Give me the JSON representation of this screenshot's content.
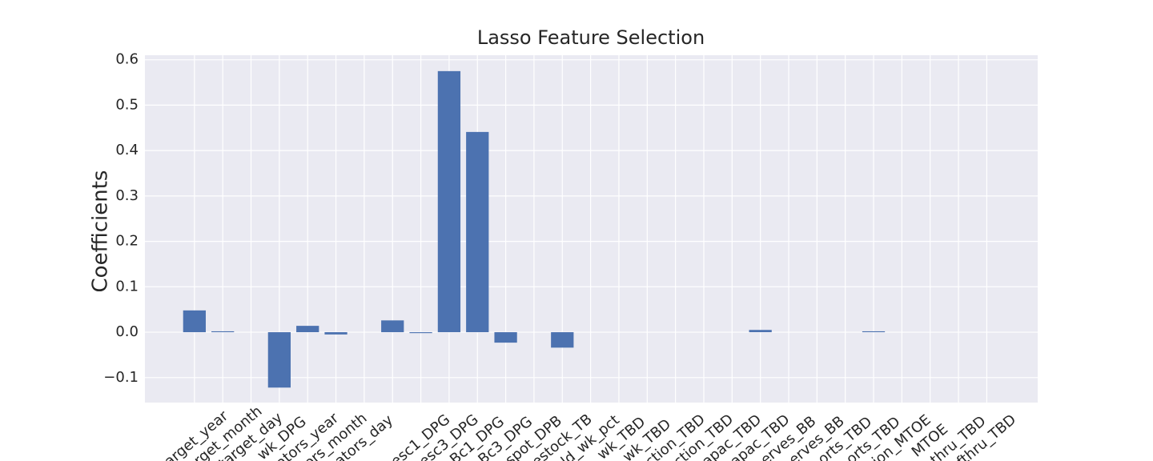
{
  "chart_data": {
    "type": "bar",
    "title": "Lasso Feature Selection",
    "y_label": "Coefficients",
    "categories": [
      "target_year",
      "target_month",
      "target_day",
      "_wk_DPG",
      "ators_year",
      "ors_month",
      "ators_day",
      null,
      "esc1_DPG",
      "esc3_DPG",
      "Bc1_DPG",
      "Bc3_DPG",
      "spot_DPB",
      "estock_TB",
      "ld_wk_pct",
      "_wk_TBD",
      "wk_TBD",
      "ction_TBD",
      "ction_TBD",
      "apac_TBD",
      "apac_TBD",
      "erves_BB",
      "erves_BB",
      "orts_TBD",
      "orts_TBD",
      "ion_MTOE",
      "MTOE",
      "thru_TBD",
      "fthru_TBD"
    ],
    "values": [
      0.048,
      0.002,
      0,
      -0.122,
      0.014,
      -0.005,
      0,
      0.026,
      -0.002,
      0.575,
      0.441,
      -0.023,
      0,
      -0.034,
      0,
      0,
      0,
      0,
      0,
      0,
      0.005,
      0,
      0,
      0,
      0.002,
      0,
      0,
      0,
      0
    ],
    "color": "#4c72b0",
    "ylim": [
      -0.155,
      0.61
    ],
    "yticks": [
      {
        "value": -0.1,
        "label": "−0.1"
      },
      {
        "value": 0.0,
        "label": "0.0"
      },
      {
        "value": 0.1,
        "label": "0.1"
      },
      {
        "value": 0.2,
        "label": "0.2"
      },
      {
        "value": 0.3,
        "label": "0.3"
      },
      {
        "value": 0.4,
        "label": "0.4"
      },
      {
        "value": 0.5,
        "label": "0.5"
      },
      {
        "value": 0.6,
        "label": "0.6"
      }
    ],
    "grid": true
  }
}
